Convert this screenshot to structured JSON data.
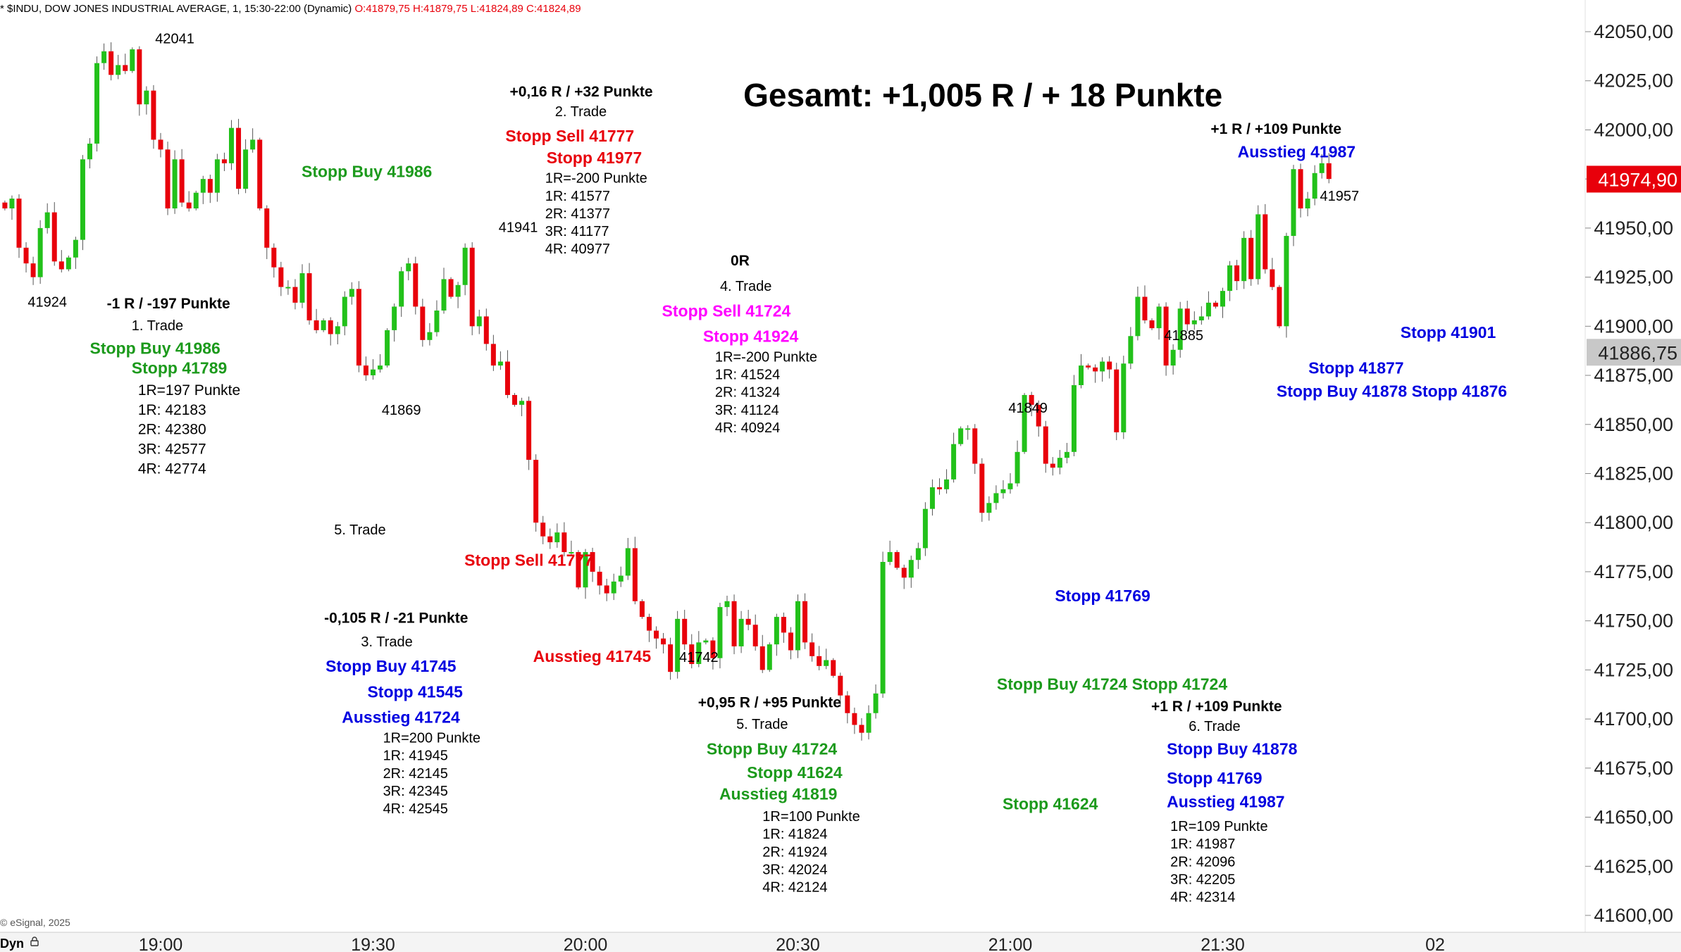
{
  "header": {
    "symbol_text": "* $INDU, DOW JONES INDUSTRIAL AVERAGE, 1, 15:30-22:00 (Dynamic)",
    "ohlc": "O:41879,75 H:41879,75 L:41824,89 C:41824,89"
  },
  "footer": {
    "copyright": "© eSignal, 2025",
    "mode": "Dyn",
    "lock_icon": "lock-icon"
  },
  "colors": {
    "up": "#22c11a",
    "down": "#e8000b",
    "green_text": "#1c9a1c",
    "red_text": "#e8000b",
    "blue_text": "#0000e0",
    "magenta_text": "#ff00ff",
    "price_tag_red": "#e8000b",
    "price_tag_gray": "#c8c8c8"
  },
  "chart_data": {
    "type": "candlestick",
    "yaxis": {
      "min": 41600,
      "max": 42050,
      "ticks": [
        "42050,00",
        "42025,00",
        "42000,00",
        "41975,00",
        "41950,00",
        "41925,00",
        "41900,00",
        "41875,00",
        "41850,00",
        "41825,00",
        "41800,00",
        "41775,00",
        "41750,00",
        "41725,00",
        "41700,00",
        "41675,00",
        "41650,00",
        "41625,00",
        "41600,00"
      ]
    },
    "xaxis": {
      "labels": [
        {
          "label": "19:00",
          "t": 0
        },
        {
          "label": "19:30",
          "t": 30
        },
        {
          "label": "20:00",
          "t": 60
        },
        {
          "label": "20:30",
          "t": 90
        },
        {
          "label": "21:00",
          "t": 120
        },
        {
          "label": "21:30",
          "t": 150
        },
        {
          "label": "02",
          "t": 180
        }
      ]
    },
    "price_tags": [
      {
        "label": "41974,90",
        "value": 41974.9,
        "style": "red"
      },
      {
        "label": "41886,75",
        "value": 41886.75,
        "style": "gray"
      }
    ],
    "closes": [
      41960,
      41965,
      41940,
      41932,
      41925,
      41950,
      41958,
      41933,
      41929,
      41935,
      41944,
      41985,
      41993,
      42034,
      42040,
      42028,
      42033,
      42030,
      42041,
      42013,
      42020,
      41995,
      41990,
      41960,
      41985,
      41963,
      41960,
      41968,
      41975,
      41968,
      41985,
      41983,
      42001,
      41970,
      41990,
      41995,
      41960,
      41940,
      41930,
      41920,
      41920,
      41912,
      41927,
      41903,
      41898,
      41903,
      41896,
      41900,
      41915,
      41919,
      41880,
      41875,
      41878,
      41880,
      41898,
      41910,
      41928,
      41932,
      41910,
      41893,
      41897,
      41908,
      41924,
      41915,
      41921,
      41940,
      41900,
      41905,
      41891,
      41880,
      41882,
      41865,
      41860,
      41862,
      41832,
      41800,
      41793,
      41790,
      41795,
      41785,
      41785,
      41767,
      41785,
      41775,
      41768,
      41764,
      41770,
      41773,
      41787,
      41760,
      41752,
      41745,
      41741,
      41738,
      41724,
      41751,
      41738,
      41728,
      41739,
      41740,
      41731,
      41757,
      41760,
      41737,
      41751,
      41748,
      41737,
      41725,
      41738,
      41752,
      41744,
      41735,
      41760,
      41739,
      41732,
      41727,
      41730,
      41722,
      41712,
      41703,
      41697,
      41693,
      41703,
      41713,
      41780,
      41785,
      41777,
      41772,
      41781,
      41787,
      41807,
      41818,
      41817,
      41822,
      41840,
      41848,
      41848,
      41830,
      41805,
      41810,
      41815,
      41817,
      41820,
      41836,
      41865,
      41860,
      41849,
      41830,
      41828,
      41833,
      41836,
      41870,
      41880,
      41879,
      41877,
      41882,
      41878,
      41846,
      41881,
      41895,
      41915,
      41903,
      41899,
      41910,
      41880,
      41888,
      41909,
      41901,
      41903,
      41905,
      41912,
      41910,
      41918,
      41931,
      41923,
      41945,
      41924,
      41957,
      41929,
      41920,
      41900,
      41946,
      41980,
      41960,
      41965,
      41978,
      41983,
      41975
    ],
    "annotations": [
      {
        "text": "42041",
        "color": "black",
        "bold": false,
        "anchor": "middle",
        "t": 2,
        "p": 42044
      },
      {
        "text": "41924",
        "color": "black",
        "bold": false,
        "anchor": "middle",
        "t": -16,
        "p": 41910
      },
      {
        "text": "41869",
        "color": "black",
        "bold": false,
        "anchor": "middle",
        "t": 34,
        "p": 41855
      },
      {
        "text": "41941",
        "color": "black",
        "bold": false,
        "anchor": "middle",
        "t": 50.5,
        "p": 41948
      },
      {
        "text": "41742",
        "color": "black",
        "bold": false,
        "anchor": "middle",
        "t": 76,
        "p": 41729
      },
      {
        "text": "41849",
        "color": "black",
        "bold": false,
        "anchor": "middle",
        "t": 122.5,
        "p": 41856
      },
      {
        "text": "41885",
        "color": "black",
        "bold": false,
        "anchor": "middle",
        "t": 144.5,
        "p": 41893
      },
      {
        "text": "41957",
        "color": "black",
        "bold": false,
        "anchor": "middle",
        "t": 166.5,
        "p": 41964
      },
      {
        "text": "Gesamt: +1,005 R / + 18 Punkte",
        "color": "black",
        "bold": true,
        "size": 46,
        "anchor": "start",
        "t": 82.3,
        "p": 42012
      },
      {
        "text": "-1 R / -197 Punkte",
        "color": "black",
        "bold": true,
        "size": 21,
        "anchor": "start",
        "t": -7.6,
        "p": 41909
      },
      {
        "text": "1. Trade",
        "color": "black",
        "bold": false,
        "anchor": "start",
        "t": -4.1,
        "p": 41898
      },
      {
        "text": "Stopp Buy 41986",
        "color": "green",
        "bold": true,
        "size": 23,
        "anchor": "start",
        "t": -10,
        "p": 41886
      },
      {
        "text": "Stopp 41789",
        "color": "green",
        "bold": true,
        "size": 23,
        "anchor": "start",
        "t": -4.1,
        "p": 41876
      },
      {
        "text": "1R=197 Punkte",
        "color": "black",
        "bold": false,
        "size": 21,
        "anchor": "start",
        "t": -3.2,
        "p": 41865
      },
      {
        "text": "1R: 42183",
        "color": "black",
        "bold": false,
        "size": 21,
        "anchor": "start",
        "t": -3.2,
        "p": 41855
      },
      {
        "text": "2R: 42380",
        "color": "black",
        "bold": false,
        "size": 21,
        "anchor": "start",
        "t": -3.2,
        "p": 41845
      },
      {
        "text": "3R: 42577",
        "color": "black",
        "bold": false,
        "size": 21,
        "anchor": "start",
        "t": -3.2,
        "p": 41835
      },
      {
        "text": "4R: 42774",
        "color": "black",
        "bold": false,
        "size": 21,
        "anchor": "start",
        "t": -3.2,
        "p": 41825
      },
      {
        "text": "Stopp Buy 41986",
        "color": "green",
        "bold": true,
        "size": 23,
        "anchor": "start",
        "t": 19.9,
        "p": 41976
      },
      {
        "text": "+0,16 R / +32 Punkte",
        "color": "black",
        "bold": true,
        "size": 21,
        "anchor": "start",
        "t": 49.3,
        "p": 42017
      },
      {
        "text": "2. Trade",
        "color": "black",
        "bold": false,
        "anchor": "start",
        "t": 55.7,
        "p": 42007
      },
      {
        "text": "Stopp Sell 41777",
        "color": "red",
        "bold": true,
        "size": 23,
        "anchor": "start",
        "t": 48.7,
        "p": 41994
      },
      {
        "text": "Stopp 41977",
        "color": "red",
        "bold": true,
        "size": 23,
        "anchor": "start",
        "t": 54.5,
        "p": 41983
      },
      {
        "text": "1R=-200 Punkte",
        "color": "black",
        "bold": false,
        "size": 20,
        "anchor": "start",
        "t": 54.3,
        "p": 41973
      },
      {
        "text": "1R: 41577",
        "color": "black",
        "bold": false,
        "size": 20,
        "anchor": "start",
        "t": 54.3,
        "p": 41964
      },
      {
        "text": "2R: 41377",
        "color": "black",
        "bold": false,
        "size": 20,
        "anchor": "start",
        "t": 54.3,
        "p": 41955
      },
      {
        "text": "3R: 41177",
        "color": "black",
        "bold": false,
        "size": 20,
        "anchor": "start",
        "t": 54.3,
        "p": 41946
      },
      {
        "text": "4R: 40977",
        "color": "black",
        "bold": false,
        "size": 20,
        "anchor": "start",
        "t": 54.3,
        "p": 41937
      },
      {
        "text": "0R",
        "color": "black",
        "bold": true,
        "size": 21,
        "anchor": "start",
        "t": 80.5,
        "p": 41931
      },
      {
        "text": "4. Trade",
        "color": "black",
        "bold": false,
        "anchor": "start",
        "t": 79,
        "p": 41918
      },
      {
        "text": "Stopp Sell 41724",
        "color": "magenta",
        "bold": true,
        "size": 23,
        "anchor": "start",
        "t": 70.8,
        "p": 41905
      },
      {
        "text": "Stopp 41924",
        "color": "magenta",
        "bold": true,
        "size": 23,
        "anchor": "start",
        "t": 76.6,
        "p": 41892
      },
      {
        "text": "1R=-200 Punkte",
        "color": "black",
        "bold": false,
        "size": 20,
        "anchor": "start",
        "t": 78.3,
        "p": 41882
      },
      {
        "text": "1R: 41524",
        "color": "black",
        "bold": false,
        "size": 20,
        "anchor": "start",
        "t": 78.3,
        "p": 41873
      },
      {
        "text": "2R: 41324",
        "color": "black",
        "bold": false,
        "size": 20,
        "anchor": "start",
        "t": 78.3,
        "p": 41864
      },
      {
        "text": "3R: 41124",
        "color": "black",
        "bold": false,
        "size": 20,
        "anchor": "start",
        "t": 78.3,
        "p": 41855
      },
      {
        "text": "4R: 40924",
        "color": "black",
        "bold": false,
        "size": 20,
        "anchor": "start",
        "t": 78.3,
        "p": 41846
      },
      {
        "text": "5. Trade",
        "color": "black",
        "bold": false,
        "anchor": "start",
        "t": 24.5,
        "p": 41794
      },
      {
        "text": "Stopp Sell 41777",
        "color": "red",
        "bold": true,
        "size": 23,
        "anchor": "start",
        "t": 42.9,
        "p": 41778
      },
      {
        "text": "-0,105 R / -21 Punkte",
        "color": "black",
        "bold": true,
        "size": 21,
        "anchor": "start",
        "t": 23.1,
        "p": 41749
      },
      {
        "text": "3. Trade",
        "color": "black",
        "bold": false,
        "anchor": "start",
        "t": 28.3,
        "p": 41737
      },
      {
        "text": "Stopp Buy 41745",
        "color": "blue",
        "bold": true,
        "size": 23,
        "anchor": "start",
        "t": 23.3,
        "p": 41724
      },
      {
        "text": "Stopp 41545",
        "color": "blue",
        "bold": true,
        "size": 23,
        "anchor": "start",
        "t": 29.2,
        "p": 41711
      },
      {
        "text": "Ausstieg 41724",
        "color": "blue",
        "bold": true,
        "size": 23,
        "anchor": "start",
        "t": 25.6,
        "p": 41698
      },
      {
        "text": "1R=200 Punkte",
        "color": "black",
        "bold": false,
        "size": 20,
        "anchor": "start",
        "t": 31.4,
        "p": 41688
      },
      {
        "text": "1R: 41945",
        "color": "black",
        "bold": false,
        "size": 20,
        "anchor": "start",
        "t": 31.4,
        "p": 41679
      },
      {
        "text": "2R: 42145",
        "color": "black",
        "bold": false,
        "size": 20,
        "anchor": "start",
        "t": 31.4,
        "p": 41670
      },
      {
        "text": "3R: 42345",
        "color": "black",
        "bold": false,
        "size": 20,
        "anchor": "start",
        "t": 31.4,
        "p": 41661
      },
      {
        "text": "4R: 42545",
        "color": "black",
        "bold": false,
        "size": 20,
        "anchor": "start",
        "t": 31.4,
        "p": 41652
      },
      {
        "text": "Ausstieg 41745",
        "color": "red",
        "bold": true,
        "size": 23,
        "anchor": "start",
        "t": 52.6,
        "p": 41729
      },
      {
        "text": "+0,95 R / +95 Punkte",
        "color": "black",
        "bold": true,
        "size": 21,
        "anchor": "start",
        "t": 75.9,
        "p": 41706
      },
      {
        "text": "5. Trade",
        "color": "black",
        "bold": false,
        "anchor": "start",
        "t": 81.3,
        "p": 41695
      },
      {
        "text": "Stopp Buy 41724",
        "color": "green",
        "bold": true,
        "size": 23,
        "anchor": "start",
        "t": 77.1,
        "p": 41682
      },
      {
        "text": "Stopp 41624",
        "color": "green",
        "bold": true,
        "size": 23,
        "anchor": "start",
        "t": 82.8,
        "p": 41670
      },
      {
        "text": "Ausstieg 41819",
        "color": "green",
        "bold": true,
        "size": 23,
        "anchor": "start",
        "t": 78.9,
        "p": 41659
      },
      {
        "text": "1R=100 Punkte",
        "color": "black",
        "bold": false,
        "size": 20,
        "anchor": "start",
        "t": 85,
        "p": 41648
      },
      {
        "text": "1R: 41824",
        "color": "black",
        "bold": false,
        "size": 20,
        "anchor": "start",
        "t": 85,
        "p": 41639
      },
      {
        "text": "2R: 41924",
        "color": "black",
        "bold": false,
        "size": 20,
        "anchor": "start",
        "t": 85,
        "p": 41630
      },
      {
        "text": "3R: 42024",
        "color": "black",
        "bold": false,
        "size": 20,
        "anchor": "start",
        "t": 85,
        "p": 41621
      },
      {
        "text": "4R: 42124",
        "color": "black",
        "bold": false,
        "size": 20,
        "anchor": "start",
        "t": 85,
        "p": 41612
      },
      {
        "text": "Stopp Buy 41724 Stopp 41724",
        "color": "green",
        "bold": true,
        "size": 23,
        "anchor": "start",
        "t": 118.1,
        "p": 41715
      },
      {
        "text": "Stopp 41624",
        "color": "green",
        "bold": true,
        "size": 23,
        "anchor": "start",
        "t": 118.9,
        "p": 41654
      },
      {
        "text": "Stopp 41769",
        "color": "blue",
        "bold": true,
        "size": 23,
        "anchor": "start",
        "t": 126.3,
        "p": 41760
      },
      {
        "text": "+1 R / +109 Punkte",
        "color": "black",
        "bold": true,
        "size": 21,
        "anchor": "start",
        "t": 139.9,
        "p": 41704
      },
      {
        "text": "6. Trade",
        "color": "black",
        "bold": false,
        "anchor": "start",
        "t": 145.2,
        "p": 41694
      },
      {
        "text": "Stopp Buy 41878",
        "color": "blue",
        "bold": true,
        "size": 23,
        "anchor": "start",
        "t": 142.1,
        "p": 41682
      },
      {
        "text": "Stopp 41769",
        "color": "blue",
        "bold": true,
        "size": 23,
        "anchor": "start",
        "t": 142.1,
        "p": 41667
      },
      {
        "text": "Ausstieg 41987",
        "color": "blue",
        "bold": true,
        "size": 23,
        "anchor": "start",
        "t": 142.1,
        "p": 41655
      },
      {
        "text": "1R=109 Punkte",
        "color": "black",
        "bold": false,
        "size": 20,
        "anchor": "start",
        "t": 142.6,
        "p": 41643
      },
      {
        "text": "1R: 41987",
        "color": "black",
        "bold": false,
        "size": 20,
        "anchor": "start",
        "t": 142.6,
        "p": 41634
      },
      {
        "text": "2R: 42096",
        "color": "black",
        "bold": false,
        "size": 20,
        "anchor": "start",
        "t": 142.6,
        "p": 41625
      },
      {
        "text": "3R: 42205",
        "color": "black",
        "bold": false,
        "size": 20,
        "anchor": "start",
        "t": 142.6,
        "p": 41616
      },
      {
        "text": "4R: 42314",
        "color": "black",
        "bold": false,
        "size": 20,
        "anchor": "start",
        "t": 142.6,
        "p": 41607
      },
      {
        "text": "+1 R / +109 Punkte",
        "color": "black",
        "bold": true,
        "size": 21,
        "anchor": "start",
        "t": 148.3,
        "p": 41998
      },
      {
        "text": "Ausstieg 41987",
        "color": "blue",
        "bold": true,
        "size": 23,
        "anchor": "start",
        "t": 152.1,
        "p": 41986
      },
      {
        "text": "Stopp 41901",
        "color": "blue",
        "bold": true,
        "size": 23,
        "anchor": "start",
        "t": 175.1,
        "p": 41894
      },
      {
        "text": "Stopp 41877",
        "color": "blue",
        "bold": true,
        "size": 23,
        "anchor": "start",
        "t": 162.1,
        "p": 41876
      },
      {
        "text": "Stopp Buy 41878 Stopp 41876",
        "color": "blue",
        "bold": true,
        "size": 23,
        "anchor": "start",
        "t": 157.6,
        "p": 41864
      }
    ]
  }
}
